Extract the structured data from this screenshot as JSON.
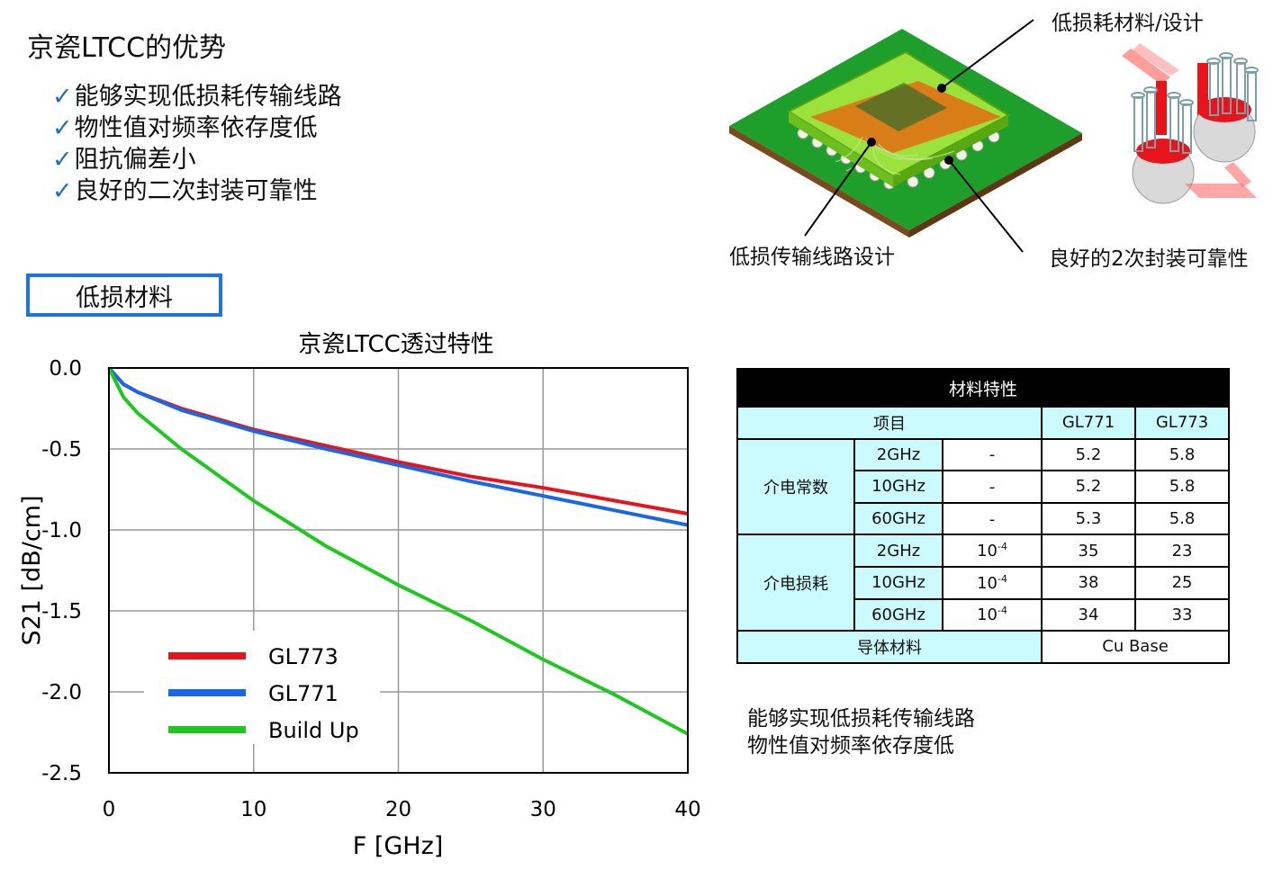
{
  "page_title": "京瓷LTCC的优势",
  "check_glyph": "✓",
  "advantages": [
    "能够实现低损耗传输线路",
    "物性值对频率依存度低",
    "阻抗偏差小",
    "良好的二次封装可靠性"
  ],
  "section_tab": "低损材料",
  "illustration": {
    "label_top": "低损耗材料/设计",
    "label_left": "低损传输线路设计",
    "label_right": "良好的2次封装可靠性",
    "colors": {
      "board": "#1e9e2a",
      "substrate": "#7ed321",
      "chip": "#e46b12",
      "via": "#e8141c"
    }
  },
  "chart_data": {
    "type": "line",
    "title": "京瓷LTCC透过特性",
    "xlabel": "F [GHz]",
    "ylabel": "S21  [dB/cm]",
    "xlim": [
      0,
      40
    ],
    "ylim": [
      -2.5,
      0.0
    ],
    "xticks": [
      0,
      10,
      20,
      30,
      40
    ],
    "yticks": [
      0.0,
      -0.5,
      -1.0,
      -1.5,
      -2.0,
      -2.5
    ],
    "xtick_labels": [
      "0",
      "10",
      "20",
      "30",
      "40"
    ],
    "ytick_labels": [
      "0.0",
      "-0.5",
      "-1.0",
      "-1.5",
      "-2.0",
      "-2.5"
    ],
    "grid": true,
    "legend_position": "bottom-left",
    "series": [
      {
        "name": "GL773",
        "color": "#e8141c",
        "x": [
          0,
          1,
          2,
          5,
          10,
          15,
          20,
          25,
          30,
          35,
          40
        ],
        "y": [
          0,
          -0.1,
          -0.15,
          -0.25,
          -0.38,
          -0.48,
          -0.58,
          -0.67,
          -0.74,
          -0.82,
          -0.9
        ]
      },
      {
        "name": "GL771",
        "color": "#1a66e8",
        "x": [
          0,
          1,
          2,
          5,
          10,
          15,
          20,
          25,
          30,
          35,
          40
        ],
        "y": [
          0,
          -0.1,
          -0.15,
          -0.26,
          -0.39,
          -0.5,
          -0.6,
          -0.7,
          -0.79,
          -0.88,
          -0.97
        ]
      },
      {
        "name": "Build Up",
        "color": "#1ec81e",
        "x": [
          0,
          1,
          2,
          5,
          10,
          15,
          20,
          25,
          30,
          35,
          40
        ],
        "y": [
          0,
          -0.18,
          -0.28,
          -0.5,
          -0.82,
          -1.1,
          -1.34,
          -1.56,
          -1.8,
          -2.02,
          -2.26
        ]
      }
    ]
  },
  "table": {
    "title": "材料特性",
    "header": [
      "项目",
      "GL771",
      "GL773"
    ],
    "groups": [
      {
        "name": "介电常数",
        "rows": [
          {
            "freq": "2GHz",
            "unit_base": "-",
            "unit_exp": "",
            "gl771": "5.2",
            "gl773": "5.8"
          },
          {
            "freq": "10GHz",
            "unit_base": "-",
            "unit_exp": "",
            "gl771": "5.2",
            "gl773": "5.8"
          },
          {
            "freq": "60GHz",
            "unit_base": "-",
            "unit_exp": "",
            "gl771": "5.3",
            "gl773": "5.8"
          }
        ]
      },
      {
        "name": "介电损耗",
        "rows": [
          {
            "freq": "2GHz",
            "unit_base": "10",
            "unit_exp": "-4",
            "gl771": "35",
            "gl773": "23"
          },
          {
            "freq": "10GHz",
            "unit_base": "10",
            "unit_exp": "-4",
            "gl771": "38",
            "gl773": "25"
          },
          {
            "freq": "60GHz",
            "unit_base": "10",
            "unit_exp": "-4",
            "gl771": "34",
            "gl773": "33"
          }
        ]
      }
    ],
    "footer_label": "导体材料",
    "footer_value": "Cu Base"
  },
  "notes": [
    "能够实现低损耗传输线路",
    "物性值对频率依存度低"
  ]
}
